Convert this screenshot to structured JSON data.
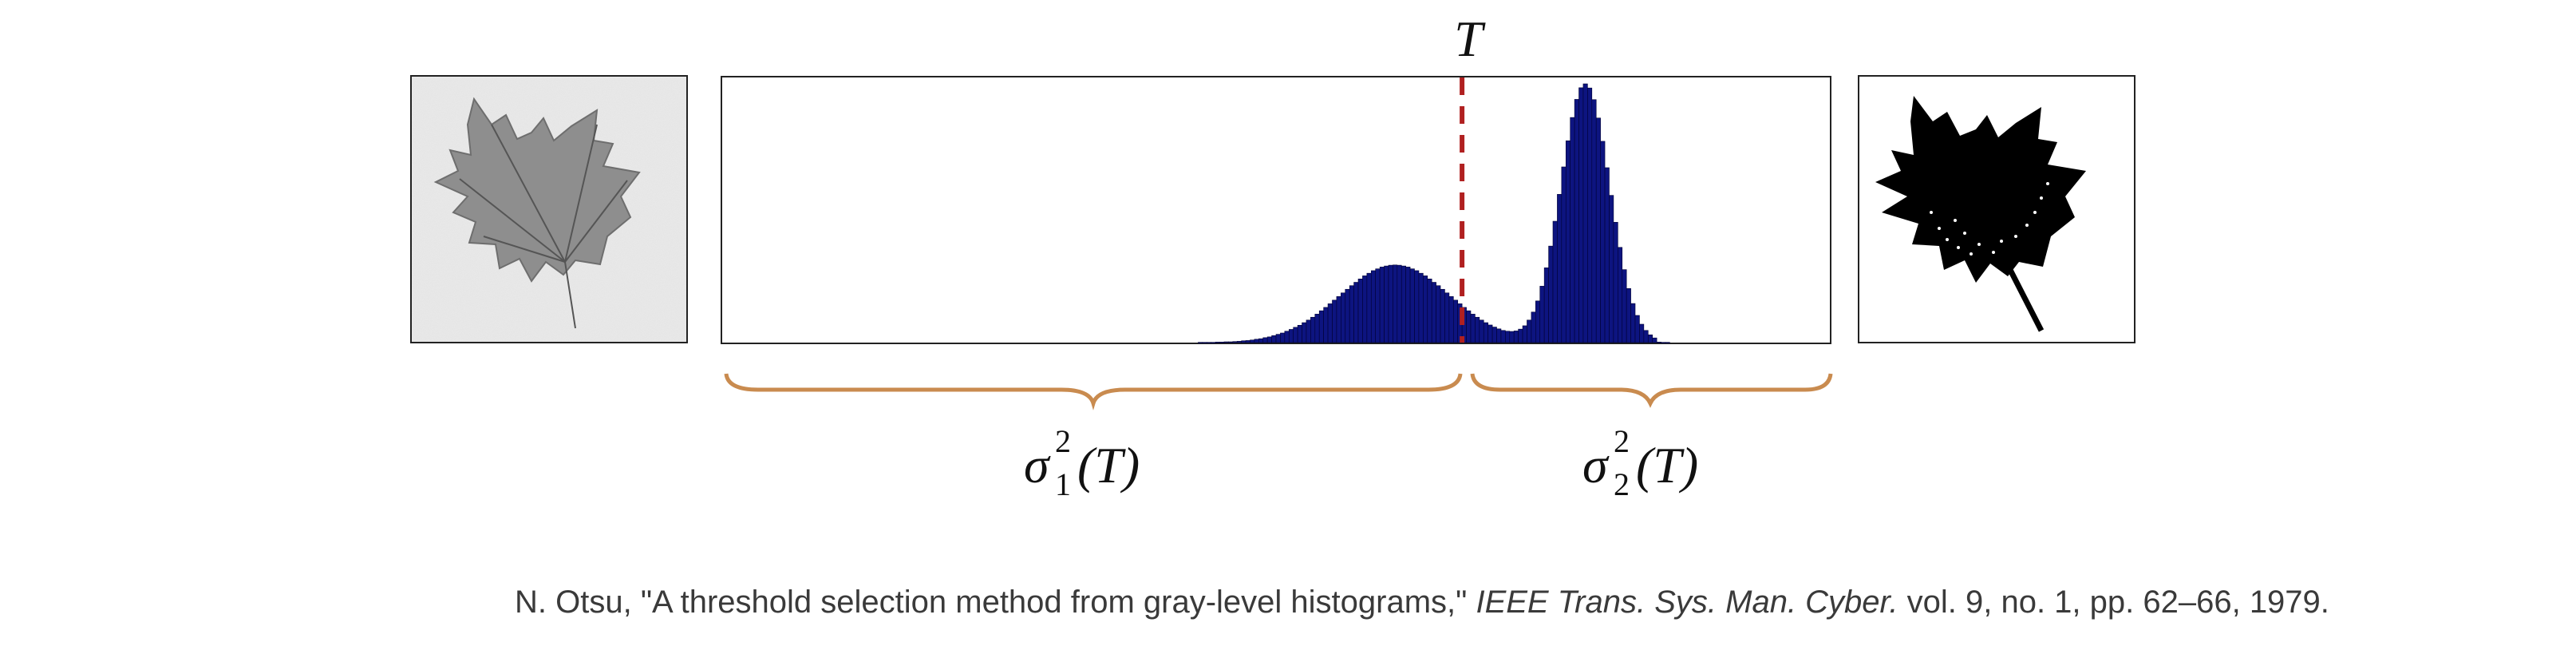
{
  "figure": {
    "threshold_label": "T",
    "class1_label": {
      "sigma": "σ",
      "sub": "1",
      "sup": "2",
      "arg": "(T)"
    },
    "class2_label": {
      "sigma": "σ",
      "sub": "2",
      "sup": "2",
      "arg": "(T)"
    },
    "colors": {
      "bars": "#0d1480",
      "bar_edge": "#000033",
      "threshold_line": "#b02020",
      "brace": "#c98b4f",
      "frame": "#222222"
    },
    "images": {
      "left": "grayscale-leaf-photo",
      "right": "binarized-leaf-mask"
    }
  },
  "chart_data": {
    "type": "bar",
    "title": "",
    "xlabel": "",
    "ylabel": "",
    "x_range": [
      0,
      255
    ],
    "y_range": [
      0,
      1
    ],
    "threshold": 171,
    "bins": [],
    "note_values": "normalized frequencies"
  },
  "citation": {
    "prefix": "N. Otsu, \"A threshold selection method from gray-level histograms,\" ",
    "journal": "IEEE Trans. Sys. Man. Cyber.",
    "suffix": " vol. 9, no. 1, pp. 62–66, 1979."
  }
}
